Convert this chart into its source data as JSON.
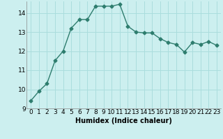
{
  "x": [
    0,
    1,
    2,
    3,
    4,
    5,
    6,
    7,
    8,
    9,
    10,
    11,
    12,
    13,
    14,
    15,
    16,
    17,
    18,
    19,
    20,
    21,
    22,
    23
  ],
  "y": [
    9.4,
    9.9,
    10.3,
    11.5,
    12.0,
    13.2,
    13.65,
    13.65,
    14.35,
    14.35,
    14.35,
    14.45,
    13.3,
    13.0,
    12.95,
    12.95,
    12.65,
    12.45,
    12.35,
    11.95,
    12.45,
    12.35,
    12.5,
    12.3
  ],
  "line_color": "#2e7d6e",
  "bg_color": "#ccefef",
  "grid_color": "#aadddd",
  "xlabel": "Humidex (Indice chaleur)",
  "ylim": [
    9,
    14.6
  ],
  "xlim": [
    -0.5,
    23.5
  ],
  "yticks": [
    9,
    10,
    11,
    12,
    13,
    14
  ],
  "xticks": [
    0,
    1,
    2,
    3,
    4,
    5,
    6,
    7,
    8,
    9,
    10,
    11,
    12,
    13,
    14,
    15,
    16,
    17,
    18,
    19,
    20,
    21,
    22,
    23
  ],
  "marker_size": 2.5,
  "line_width": 1.0,
  "xlabel_fontsize": 7,
  "tick_fontsize": 6.5
}
